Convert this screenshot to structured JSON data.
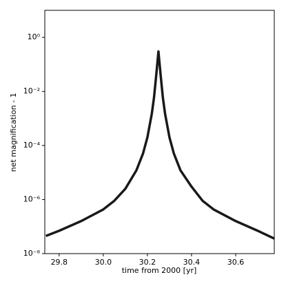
{
  "chart_data": {
    "type": "line",
    "xlabel": "time from 2000 [yr]",
    "ylabel": "net magnification - 1",
    "x": [
      29.74,
      29.8,
      29.9,
      30.0,
      30.05,
      30.1,
      30.15,
      30.18,
      30.2,
      30.22,
      30.23,
      30.24,
      30.25,
      30.26,
      30.27,
      30.28,
      30.3,
      30.32,
      30.35,
      30.4,
      30.45,
      30.5,
      30.6,
      30.7,
      30.775
    ],
    "series": [
      {
        "color": "#000000",
        "values": [
          4.5e-08,
          7e-08,
          1.6e-07,
          4.3e-07,
          9e-07,
          2.5e-06,
          1.2e-05,
          5e-05,
          0.0002,
          0.0015,
          0.006,
          0.04,
          0.3,
          0.04,
          0.006,
          0.0015,
          0.0002,
          5e-05,
          1.2e-05,
          3e-06,
          9e-07,
          4.3e-07,
          1.6e-07,
          7e-08,
          3.6e-08
        ]
      }
    ],
    "xlim": [
      29.735,
      30.775
    ],
    "xticks": [
      29.8,
      {
        "value": 30,
        "label": "30.0"
      },
      30.2,
      30.4,
      30.6
    ],
    "ylim": [
      1e-08,
      10
    ],
    "yticks": [
      {
        "value": 1,
        "label": "10⁰"
      },
      {
        "value": 0.01,
        "label": "10⁻²"
      },
      {
        "value": 0.0001,
        "label": "10⁻⁴"
      },
      {
        "value": 1e-06,
        "label": "10⁻⁶"
      },
      {
        "value": 1e-08,
        "label": "10⁻⁸"
      }
    ],
    "log_y": true
  }
}
